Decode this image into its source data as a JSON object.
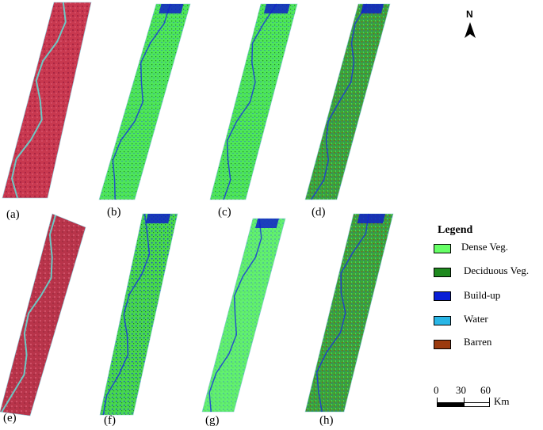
{
  "panels": [
    {
      "label": "(a)",
      "palette": "fcc"
    },
    {
      "label": "(b)",
      "palette": "class_bright"
    },
    {
      "label": "(c)",
      "palette": "class_bright"
    },
    {
      "label": "(d)",
      "palette": "class_mixed"
    },
    {
      "label": "(e)",
      "palette": "fcc_dark"
    },
    {
      "label": "(f)",
      "palette": "class_blue"
    },
    {
      "label": "(g)",
      "palette": "class_light"
    },
    {
      "label": "(h)",
      "palette": "class_mixed"
    }
  ],
  "north_arrow": {
    "label": "N"
  },
  "legend": {
    "title": "Legend",
    "items": [
      {
        "label": "Dense Veg.",
        "color": "#66ff66"
      },
      {
        "label": "Deciduous Veg.",
        "color": "#1f8a1f"
      },
      {
        "label": "Build-up",
        "color": "#0a1fd6"
      },
      {
        "label": "Water",
        "color": "#29b6e6"
      },
      {
        "label": "Barren",
        "color": "#9b3a0e"
      }
    ]
  },
  "scale_bar": {
    "ticks": [
      "0",
      "30",
      "60"
    ],
    "unit": "Km"
  }
}
